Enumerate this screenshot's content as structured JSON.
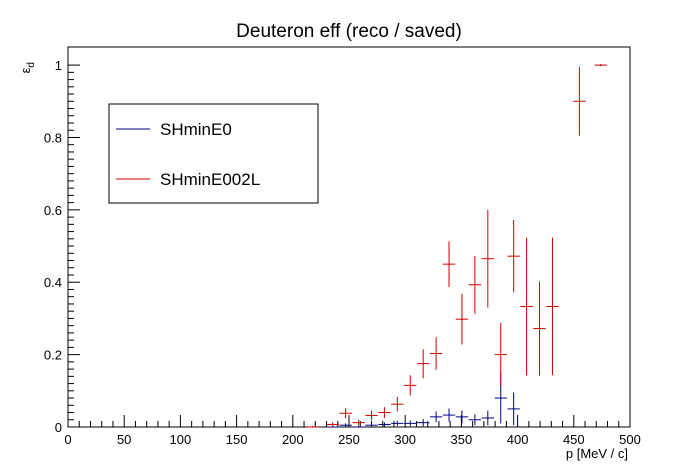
{
  "chart_data": {
    "type": "scatter",
    "title": "Deuteron eff (reco / saved)",
    "xlabel": "p [MeV / c]",
    "ylabel": "ε",
    "ylabel_sub": "d",
    "xlim": [
      0,
      500
    ],
    "ylim": [
      0,
      1.05
    ],
    "x_ticks": [
      "0",
      "50",
      "100",
      "150",
      "200",
      "250",
      "300",
      "350",
      "400",
      "450",
      "500"
    ],
    "y_ticks": [
      "0",
      "0.2",
      "0.4",
      "0.6",
      "0.8",
      "1"
    ],
    "grid": false,
    "legend_position": "upper-left",
    "series": [
      {
        "name": "SHminE0",
        "color": "#000080",
        "points": [
          {
            "x": 217.5,
            "xerr": 5.5,
            "y": 0.0,
            "yerr": 0.003
          },
          {
            "x": 235.5,
            "xerr": 5.5,
            "y": 0.0,
            "yerr": 0.003
          },
          {
            "x": 247,
            "xerr": 5.5,
            "y": 0.005,
            "yerr": 0.005
          },
          {
            "x": 258.5,
            "xerr": 5.5,
            "y": 0.0,
            "yerr": 0.003
          },
          {
            "x": 270,
            "xerr": 5.5,
            "y": 0.005,
            "yerr": 0.005
          },
          {
            "x": 281.5,
            "xerr": 5.5,
            "y": 0.007,
            "yerr": 0.006
          },
          {
            "x": 293,
            "xerr": 5.5,
            "y": 0.01,
            "yerr": 0.007
          },
          {
            "x": 304.5,
            "xerr": 5.5,
            "y": 0.01,
            "yerr": 0.008
          },
          {
            "x": 316,
            "xerr": 5.5,
            "y": 0.012,
            "yerr": 0.01
          },
          {
            "x": 327.5,
            "xerr": 5.5,
            "y": 0.028,
            "yerr": 0.015
          },
          {
            "x": 339,
            "xerr": 5.5,
            "y": 0.033,
            "yerr": 0.018
          },
          {
            "x": 350.5,
            "xerr": 5.5,
            "y": 0.028,
            "yerr": 0.018
          },
          {
            "x": 362,
            "xerr": 5.5,
            "y": 0.02,
            "yerr": 0.015
          },
          {
            "x": 373.5,
            "xerr": 5.5,
            "y": 0.025,
            "yerr": 0.02
          },
          {
            "x": 385,
            "xerr": 5.5,
            "y": 0.08,
            "yerr": 0.07
          },
          {
            "x": 396.5,
            "xerr": 5.5,
            "y": 0.05,
            "yerr": 0.045
          }
        ]
      },
      {
        "name": "SHminE002L",
        "color": "#cc0000",
        "points": [
          {
            "x": 217.5,
            "xerr": 5.5,
            "y": 0.0,
            "yerr": 0.003
          },
          {
            "x": 235.5,
            "xerr": 5.5,
            "y": 0.007,
            "yerr": 0.006
          },
          {
            "x": 247,
            "xerr": 5.5,
            "y": 0.038,
            "yerr": 0.014
          },
          {
            "x": 258.5,
            "xerr": 5.5,
            "y": 0.012,
            "yerr": 0.008
          },
          {
            "x": 270,
            "xerr": 5.5,
            "y": 0.032,
            "yerr": 0.013
          },
          {
            "x": 281.5,
            "xerr": 5.5,
            "y": 0.04,
            "yerr": 0.015
          },
          {
            "x": 293,
            "xerr": 5.5,
            "y": 0.063,
            "yerr": 0.02
          },
          {
            "x": 304.5,
            "xerr": 5.5,
            "y": 0.115,
            "yerr": 0.028
          },
          {
            "x": 316,
            "xerr": 5.5,
            "y": 0.175,
            "yerr": 0.04
          },
          {
            "x": 327.5,
            "xerr": 5.5,
            "y": 0.203,
            "yerr": 0.045
          },
          {
            "x": 339,
            "xerr": 5.5,
            "y": 0.45,
            "yerr": 0.063
          },
          {
            "x": 350.5,
            "xerr": 5.5,
            "y": 0.298,
            "yerr": 0.07
          },
          {
            "x": 362,
            "xerr": 5.5,
            "y": 0.393,
            "yerr": 0.08
          },
          {
            "x": 373.5,
            "xerr": 5.5,
            "y": 0.465,
            "yerr": 0.135
          },
          {
            "x": 385,
            "xerr": 5.5,
            "y": 0.2,
            "yerr": 0.088
          },
          {
            "x": 396.5,
            "xerr": 5.5,
            "y": 0.472,
            "yerr": 0.1
          },
          {
            "x": 408,
            "xerr": 5.5,
            "y": 0.333,
            "yerr": 0.19
          },
          {
            "x": 419.5,
            "xerr": 5.5,
            "y": 0.272,
            "yerr": 0.13
          },
          {
            "x": 431,
            "xerr": 5.5,
            "y": 0.333,
            "yerr": 0.19
          },
          {
            "x": 455,
            "xerr": 5.5,
            "y": 0.9,
            "yerr": 0.095
          },
          {
            "x": 474,
            "xerr": 5.5,
            "y": 1.0,
            "yerr": 0.003
          }
        ]
      }
    ]
  }
}
